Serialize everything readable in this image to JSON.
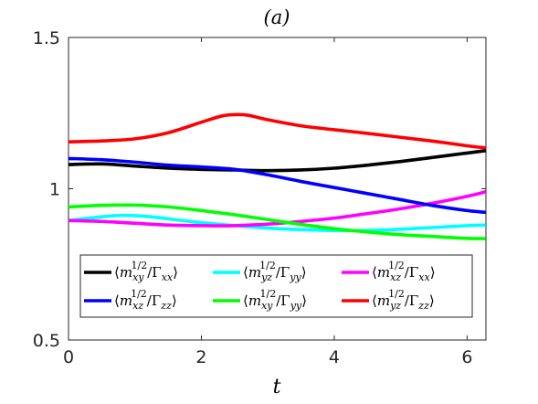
{
  "chart_data": {
    "type": "line",
    "title": "(a)",
    "xlabel": "t",
    "ylabel": "",
    "xlim": [
      0,
      6.2832
    ],
    "ylim": [
      0.5,
      1.5
    ],
    "xticks": [
      0,
      2,
      4,
      6
    ],
    "xtick_labels": [
      "0",
      "2",
      "4",
      "6"
    ],
    "yticks": [
      0.5,
      1,
      1.5
    ],
    "ytick_labels": [
      "0.5",
      "1",
      "1.5"
    ],
    "grid": false,
    "legend_position": "lower-center",
    "series": [
      {
        "name": "⟨m_xy^{1/2}/Γ_xx⟩",
        "legend": {
          "m": "m",
          "sub": "xy",
          "sup": "1/2",
          "G": "Γ",
          "gsub": "xx"
        },
        "color": "#000000",
        "x": [
          0,
          0.5,
          1.0,
          1.5,
          2.0,
          2.5,
          3.0,
          3.5,
          4.0,
          4.5,
          5.0,
          5.5,
          6.0,
          6.28
        ],
        "y": [
          1.08,
          1.082,
          1.075,
          1.068,
          1.064,
          1.062,
          1.06,
          1.062,
          1.068,
          1.078,
          1.09,
          1.104,
          1.118,
          1.126
        ]
      },
      {
        "name": "⟨m_yz^{1/2}/Γ_yy⟩",
        "legend": {
          "m": "m",
          "sub": "yz",
          "sup": "1/2",
          "G": "Γ",
          "gsub": "yy"
        },
        "color": "#00ffff",
        "x": [
          0,
          0.4,
          0.8,
          1.2,
          1.6,
          2.0,
          2.5,
          3.0,
          3.5,
          4.0,
          4.5,
          5.0,
          5.5,
          6.0,
          6.28
        ],
        "y": [
          0.895,
          0.905,
          0.912,
          0.908,
          0.898,
          0.888,
          0.878,
          0.87,
          0.865,
          0.862,
          0.862,
          0.866,
          0.872,
          0.878,
          0.88
        ]
      },
      {
        "name": "⟨m_xz^{1/2}/Γ_xx⟩",
        "legend": {
          "m": "m",
          "sub": "xz",
          "sup": "1/2",
          "G": "Γ",
          "gsub": "xx"
        },
        "color": "#ff00ff",
        "x": [
          0,
          0.5,
          1.0,
          1.5,
          2.0,
          2.5,
          3.0,
          3.5,
          4.0,
          4.5,
          5.0,
          5.5,
          6.0,
          6.28
        ],
        "y": [
          0.895,
          0.892,
          0.886,
          0.88,
          0.878,
          0.878,
          0.883,
          0.892,
          0.903,
          0.918,
          0.934,
          0.953,
          0.975,
          0.99
        ]
      },
      {
        "name": "⟨m_xz^{1/2}/Γ_zz⟩",
        "legend": {
          "m": "m",
          "sub": "xz",
          "sup": "1/2",
          "G": "Γ",
          "gsub": "zz"
        },
        "color": "#0000ff",
        "x": [
          0,
          0.5,
          1.0,
          1.5,
          2.0,
          2.5,
          3.0,
          3.5,
          4.0,
          4.5,
          5.0,
          5.5,
          6.0,
          6.28
        ],
        "y": [
          1.1,
          1.096,
          1.088,
          1.078,
          1.072,
          1.064,
          1.046,
          1.024,
          1.004,
          0.984,
          0.964,
          0.944,
          0.928,
          0.922
        ]
      },
      {
        "name": "⟨m_xy^{1/2}/Γ_yy⟩",
        "legend": {
          "m": "m",
          "sub": "xy",
          "sup": "1/2",
          "G": "Γ",
          "gsub": "yy"
        },
        "color": "#00ff00",
        "x": [
          0,
          0.5,
          1.0,
          1.5,
          2.0,
          2.5,
          3.0,
          3.5,
          4.0,
          4.5,
          5.0,
          5.5,
          6.0,
          6.28
        ],
        "y": [
          0.94,
          0.945,
          0.946,
          0.94,
          0.928,
          0.914,
          0.898,
          0.882,
          0.868,
          0.857,
          0.848,
          0.842,
          0.836,
          0.835
        ]
      },
      {
        "name": "⟨m_yz^{1/2}/Γ_zz⟩",
        "legend": {
          "m": "m",
          "sub": "yz",
          "sup": "1/2",
          "G": "Γ",
          "gsub": "zz"
        },
        "color": "#ff0000",
        "x": [
          0,
          0.5,
          1.0,
          1.5,
          2.0,
          2.3,
          2.5,
          2.7,
          3.0,
          3.5,
          4.0,
          4.5,
          5.0,
          5.5,
          6.0,
          6.28
        ],
        "y": [
          1.155,
          1.158,
          1.165,
          1.185,
          1.22,
          1.24,
          1.245,
          1.243,
          1.228,
          1.208,
          1.195,
          1.183,
          1.17,
          1.157,
          1.142,
          1.135
        ]
      }
    ]
  }
}
